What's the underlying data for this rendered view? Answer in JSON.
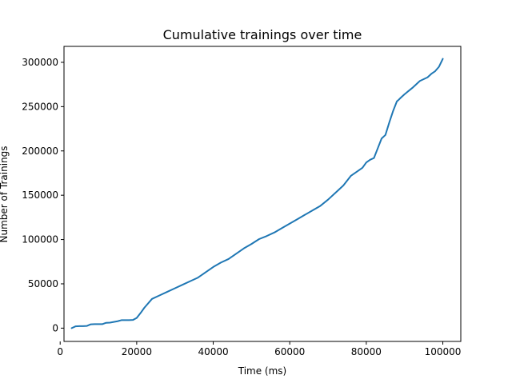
{
  "chart_data": {
    "type": "line",
    "title": "Cumulative trainings over time",
    "xlabel": "Time (ms)",
    "ylabel": "Number of Trainings",
    "xlim": [
      1000,
      104700
    ],
    "ylim": [
      -15000,
      318000
    ],
    "xticks": [
      0,
      20000,
      40000,
      60000,
      80000,
      100000
    ],
    "yticks": [
      0,
      50000,
      100000,
      150000,
      200000,
      250000,
      300000
    ],
    "grid": false,
    "legend": "none",
    "series": [
      {
        "color": "#1f77b4",
        "x": [
          3000,
          4000,
          5000,
          6000,
          7000,
          8000,
          9000,
          10000,
          11000,
          12000,
          13000,
          14000,
          15000,
          16000,
          17000,
          18000,
          19000,
          20000,
          21000,
          22000,
          24000,
          26000,
          28000,
          30000,
          32000,
          34000,
          36000,
          38000,
          40000,
          42000,
          44000,
          46000,
          48000,
          50000,
          52000,
          54000,
          56000,
          58000,
          60000,
          62000,
          64000,
          66000,
          68000,
          70000,
          72000,
          74000,
          76000,
          78000,
          79000,
          80000,
          81000,
          82000,
          83000,
          84000,
          85000,
          86000,
          87000,
          88000,
          88300,
          89000,
          90000,
          92000,
          94000,
          96000,
          97000,
          98000,
          99000,
          100000
        ],
        "y": [
          0,
          2000,
          2300,
          2300,
          2500,
          4300,
          4500,
          4500,
          4500,
          6000,
          6200,
          7000,
          7800,
          9000,
          9000,
          9000,
          9200,
          11500,
          17000,
          23000,
          33000,
          37000,
          41000,
          45000,
          49000,
          53000,
          57000,
          63000,
          69000,
          74000,
          78000,
          84000,
          90000,
          95000,
          100500,
          104000,
          108000,
          113000,
          118000,
          123000,
          128000,
          133000,
          138000,
          145000,
          153000,
          161000,
          172000,
          178000,
          181000,
          187000,
          190000,
          192000,
          203000,
          214000,
          218000,
          232000,
          245000,
          256000,
          257000,
          260000,
          264000,
          271000,
          279000,
          283000,
          287000,
          290000,
          295000,
          304000
        ]
      }
    ]
  }
}
